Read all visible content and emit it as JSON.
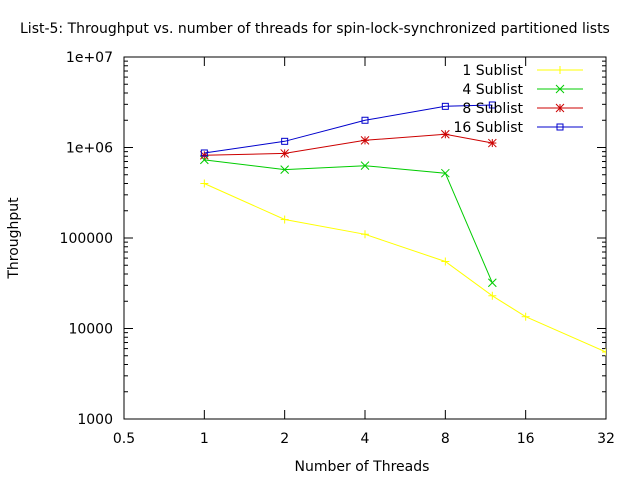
{
  "chart_data": {
    "type": "line",
    "title": "List-5: Throughput vs. number of threads for spin-lock-synchronized partitioned lists",
    "xlabel": "Number of Threads",
    "ylabel": "Throughput",
    "x_scale": "log2",
    "y_scale": "log10",
    "xlim": [
      0.5,
      32
    ],
    "ylim": [
      1000,
      10000000
    ],
    "x_ticks": [
      {
        "value": 0.5,
        "label": "0.5"
      },
      {
        "value": 1,
        "label": "1"
      },
      {
        "value": 2,
        "label": "2"
      },
      {
        "value": 4,
        "label": "4"
      },
      {
        "value": 8,
        "label": "8"
      },
      {
        "value": 16,
        "label": "16"
      },
      {
        "value": 32,
        "label": "32"
      }
    ],
    "y_ticks": [
      {
        "value": 1000,
        "label": "1000"
      },
      {
        "value": 10000,
        "label": "10000"
      },
      {
        "value": 100000,
        "label": "100000"
      },
      {
        "value": 1000000,
        "label": "1e+06"
      },
      {
        "value": 10000000,
        "label": "1e+07"
      }
    ],
    "legend_position": "top-right",
    "series": [
      {
        "name": "1 Sublist",
        "color": "#ffff00",
        "marker": "plus",
        "x": [
          1,
          2,
          4,
          8,
          12,
          16,
          32
        ],
        "y": [
          400000,
          160000,
          110000,
          55000,
          23000,
          13500,
          5500
        ]
      },
      {
        "name": "4 Sublist",
        "color": "#00cc00",
        "marker": "x",
        "x": [
          1,
          2,
          4,
          8,
          12
        ],
        "y": [
          730000,
          570000,
          630000,
          520000,
          32000
        ]
      },
      {
        "name": "8 Sublist",
        "color": "#cc0000",
        "marker": "asterisk",
        "x": [
          1,
          2,
          4,
          8,
          12
        ],
        "y": [
          820000,
          860000,
          1200000,
          1400000,
          1120000
        ]
      },
      {
        "name": "16 Sublist",
        "color": "#0000cc",
        "marker": "square",
        "x": [
          1,
          2,
          4,
          8,
          12
        ],
        "y": [
          870000,
          1170000,
          2000000,
          2850000,
          2950000
        ]
      }
    ]
  }
}
